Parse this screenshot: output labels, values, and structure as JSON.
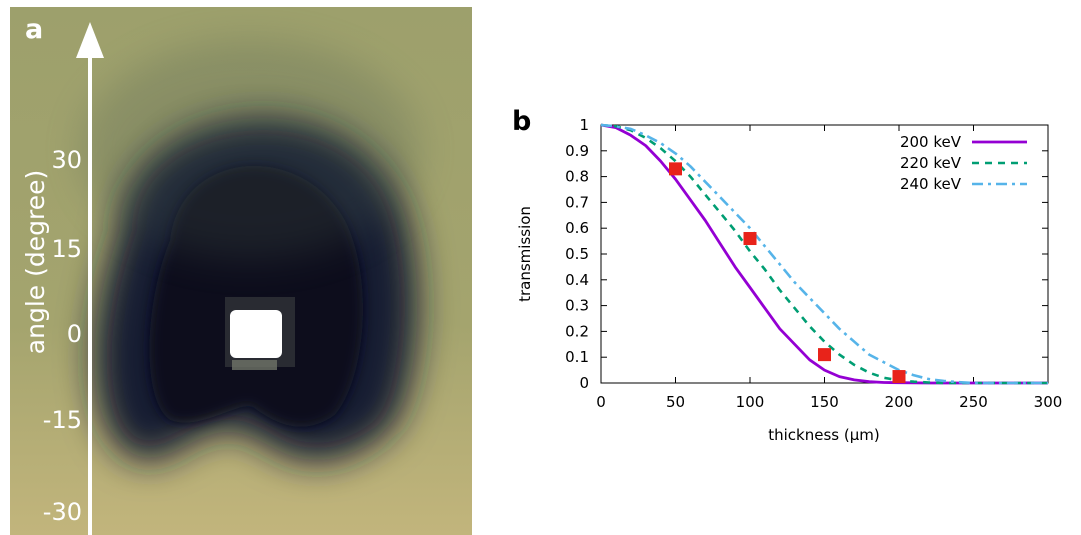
{
  "panel_a": {
    "letter": "a",
    "axis_label": "angle (degree)",
    "angle_ticks": [
      "30",
      "15",
      "0",
      "-15",
      "-30"
    ],
    "colors": {
      "background": "#a8a66e",
      "dark_core": "#0b0e26",
      "bright_spot": "#ffffff"
    }
  },
  "panel_b": {
    "letter": "b"
  },
  "chart_data": {
    "type": "line",
    "xlabel": "thickness (µm)",
    "ylabel": "transmission",
    "xlim": [
      0,
      300
    ],
    "ylim": [
      0,
      1
    ],
    "xticks": [
      "0",
      "50",
      "100",
      "150",
      "200",
      "250",
      "300"
    ],
    "yticks": [
      "0",
      "0.1",
      "0.2",
      "0.3",
      "0.4",
      "0.5",
      "0.6",
      "0.7",
      "0.8",
      "0.9",
      "1"
    ],
    "grid": false,
    "legend_position": "top-right",
    "series": [
      {
        "name": "200 keV",
        "color": "#9400d3",
        "style": "solid",
        "x": [
          0,
          10,
          20,
          30,
          40,
          50,
          60,
          70,
          80,
          90,
          100,
          110,
          120,
          130,
          140,
          150,
          160,
          170,
          180,
          190,
          200,
          220,
          250,
          300
        ],
        "values": [
          1.0,
          0.99,
          0.96,
          0.92,
          0.86,
          0.79,
          0.71,
          0.63,
          0.54,
          0.45,
          0.37,
          0.29,
          0.21,
          0.15,
          0.09,
          0.05,
          0.025,
          0.012,
          0.005,
          0.002,
          0.001,
          0.0,
          0.0,
          0.0
        ]
      },
      {
        "name": "220 keV",
        "color": "#009e73",
        "style": "dashed",
        "x": [
          0,
          10,
          20,
          30,
          40,
          50,
          60,
          70,
          80,
          90,
          100,
          110,
          120,
          130,
          140,
          150,
          160,
          170,
          180,
          190,
          200,
          210,
          220,
          230,
          250,
          300
        ],
        "values": [
          1.0,
          0.995,
          0.98,
          0.95,
          0.91,
          0.86,
          0.8,
          0.73,
          0.66,
          0.59,
          0.51,
          0.44,
          0.36,
          0.29,
          0.22,
          0.16,
          0.11,
          0.07,
          0.04,
          0.02,
          0.01,
          0.005,
          0.002,
          0.0,
          0.0,
          0.0
        ]
      },
      {
        "name": "240 keV",
        "color": "#56b4e9",
        "style": "dash-dot",
        "x": [
          0,
          10,
          20,
          30,
          40,
          50,
          60,
          70,
          80,
          90,
          100,
          110,
          120,
          130,
          140,
          150,
          160,
          170,
          180,
          190,
          200,
          210,
          220,
          230,
          240,
          250,
          300
        ],
        "values": [
          1.0,
          0.995,
          0.985,
          0.96,
          0.93,
          0.89,
          0.84,
          0.78,
          0.72,
          0.66,
          0.6,
          0.53,
          0.46,
          0.39,
          0.33,
          0.27,
          0.21,
          0.16,
          0.11,
          0.08,
          0.05,
          0.03,
          0.015,
          0.008,
          0.003,
          0.0,
          0.0
        ]
      }
    ],
    "points": {
      "color": "#e8231a",
      "x": [
        50,
        100,
        150,
        200
      ],
      "values": [
        0.83,
        0.56,
        0.11,
        0.025
      ]
    }
  }
}
